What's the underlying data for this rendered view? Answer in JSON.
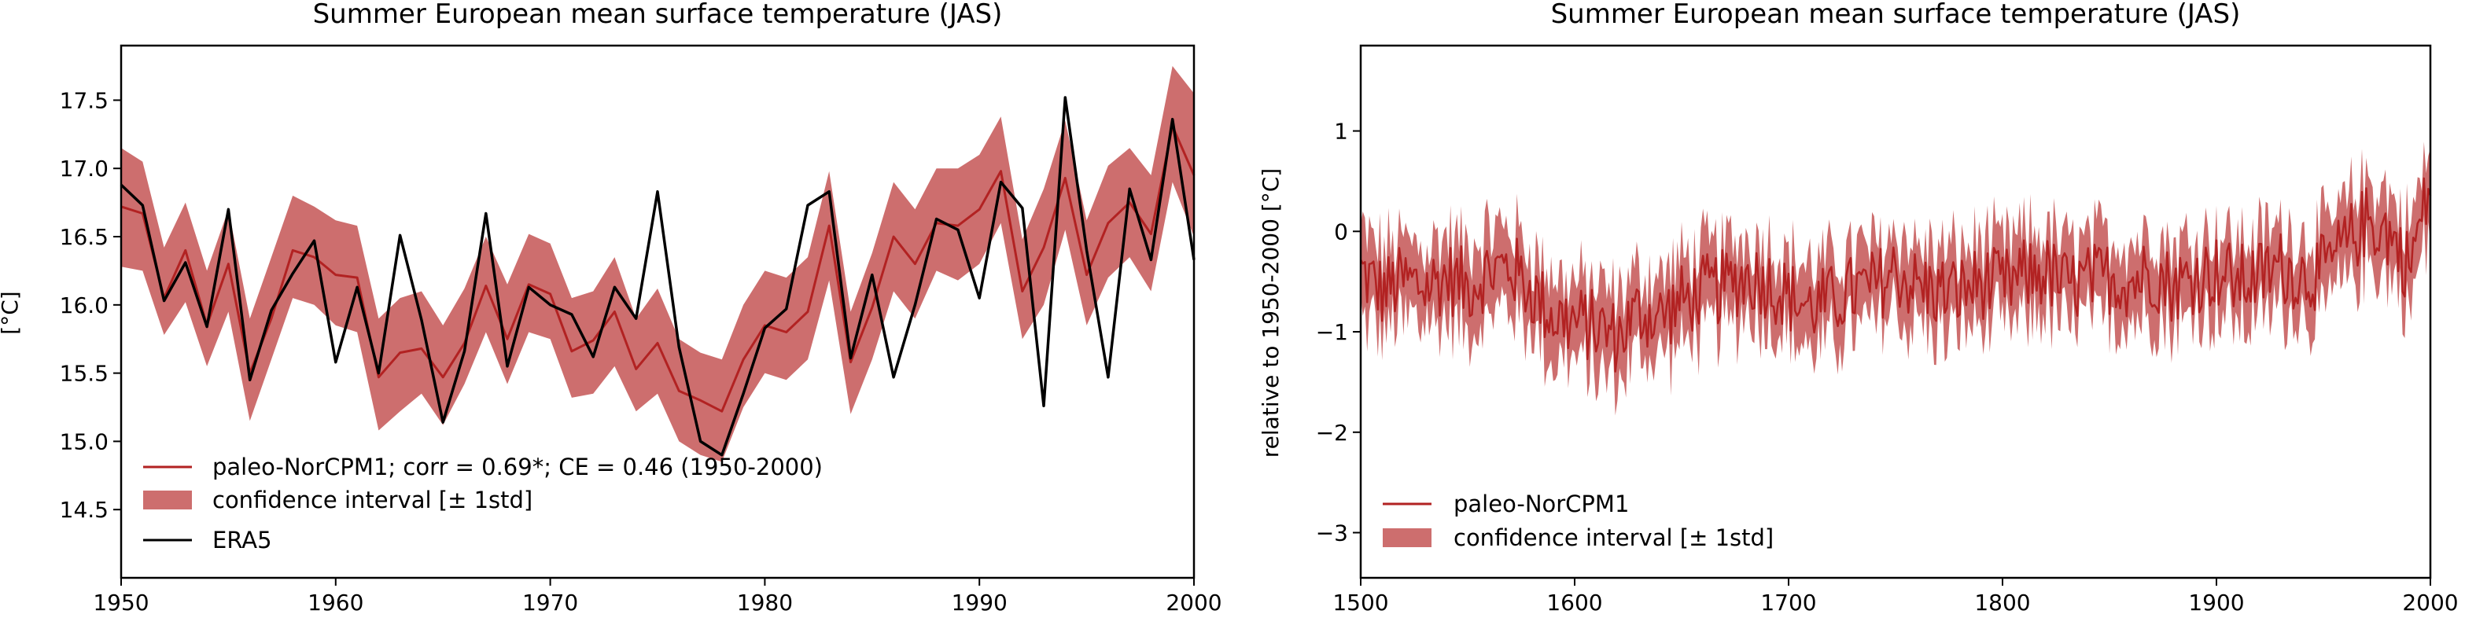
{
  "chart_data": [
    {
      "type": "line",
      "title": "Summer European mean surface temperature (JAS)",
      "xlabel": "",
      "ylabel": "[°C]",
      "xlim": [
        1950,
        2000
      ],
      "ylim": [
        14.0,
        17.9
      ],
      "xticks": [
        "1950",
        "1960",
        "1970",
        "1980",
        "1990",
        "2000"
      ],
      "yticks": [
        "14.5",
        "15.0",
        "15.5",
        "16.0",
        "16.5",
        "17.0",
        "17.5"
      ],
      "legend_position": "lower-left",
      "colors": {
        "model": "#b22222",
        "band": "#cd6e6e",
        "obs": "#000000"
      },
      "x": [
        1950,
        1951,
        1952,
        1953,
        1954,
        1955,
        1956,
        1957,
        1958,
        1959,
        1960,
        1961,
        1962,
        1963,
        1964,
        1965,
        1966,
        1967,
        1968,
        1969,
        1970,
        1971,
        1972,
        1973,
        1974,
        1975,
        1976,
        1977,
        1978,
        1979,
        1980,
        1981,
        1982,
        1983,
        1984,
        1985,
        1986,
        1987,
        1988,
        1989,
        1990,
        1991,
        1992,
        1993,
        1994,
        1995,
        1996,
        1997,
        1998,
        1999,
        2000
      ],
      "series": [
        {
          "name": "paleo-NorCPM1; corr = 0.69*; CE = 0.46 (1950-2000)",
          "role": "mean",
          "values": [
            16.72,
            16.67,
            16.05,
            16.4,
            15.85,
            16.3,
            15.5,
            15.9,
            16.4,
            16.35,
            16.22,
            16.2,
            15.47,
            15.65,
            15.68,
            15.47,
            15.72,
            16.14,
            15.75,
            16.15,
            16.08,
            15.66,
            15.74,
            15.95,
            15.53,
            15.72,
            15.37,
            15.3,
            15.22,
            15.6,
            15.85,
            15.8,
            15.95,
            16.58,
            15.58,
            15.98,
            16.5,
            16.3,
            16.6,
            16.58,
            16.7,
            16.98,
            16.1,
            16.42,
            16.93,
            16.22,
            16.6,
            16.75,
            16.52,
            17.31,
            16.95
          ]
        },
        {
          "name": "confidence interval [± 1std]",
          "role": "band",
          "lower": [
            16.28,
            16.25,
            15.78,
            16.02,
            15.55,
            15.95,
            15.15,
            15.6,
            16.05,
            16.0,
            15.85,
            15.8,
            15.08,
            15.22,
            15.35,
            15.12,
            15.42,
            15.8,
            15.42,
            15.8,
            15.75,
            15.32,
            15.35,
            15.55,
            15.22,
            15.35,
            15.0,
            14.9,
            14.85,
            15.25,
            15.5,
            15.45,
            15.6,
            16.18,
            15.2,
            15.6,
            16.1,
            15.9,
            16.25,
            16.18,
            16.3,
            16.6,
            15.75,
            16.0,
            16.55,
            15.85,
            16.2,
            16.35,
            16.1,
            16.9,
            16.5
          ],
          "upper": [
            17.15,
            17.05,
            16.42,
            16.75,
            16.25,
            16.7,
            15.9,
            16.35,
            16.8,
            16.72,
            16.62,
            16.58,
            15.9,
            16.05,
            16.1,
            15.85,
            16.12,
            16.5,
            16.15,
            16.52,
            16.45,
            16.05,
            16.1,
            16.35,
            15.9,
            16.12,
            15.75,
            15.65,
            15.6,
            16.0,
            16.25,
            16.2,
            16.35,
            16.98,
            15.95,
            16.38,
            16.9,
            16.7,
            17.0,
            17.0,
            17.1,
            17.38,
            16.48,
            16.85,
            17.35,
            16.62,
            17.02,
            17.15,
            16.95,
            17.75,
            17.55
          ]
        },
        {
          "name": "ERA5",
          "role": "obs",
          "values": [
            16.88,
            16.73,
            16.03,
            16.31,
            15.84,
            16.7,
            15.45,
            15.96,
            16.23,
            16.47,
            15.58,
            16.13,
            15.5,
            16.51,
            15.89,
            15.14,
            15.66,
            16.67,
            15.55,
            16.13,
            16.0,
            15.93,
            15.62,
            16.13,
            15.9,
            16.83,
            15.69,
            15.0,
            14.9,
            15.35,
            15.83,
            15.97,
            16.73,
            16.83,
            15.61,
            16.22,
            15.47,
            16.0,
            16.63,
            16.55,
            16.05,
            16.9,
            16.71,
            15.26,
            17.52,
            16.4,
            15.47,
            16.85,
            16.33,
            17.36,
            16.33
          ]
        }
      ]
    },
    {
      "type": "line",
      "title": "Summer European mean surface temperature (JAS)",
      "xlabel": "",
      "ylabel": "relative to 1950-2000 [°C]",
      "xlim": [
        1500,
        2000
      ],
      "ylim": [
        -3.45,
        1.85
      ],
      "xticks": [
        "1500",
        "1600",
        "1700",
        "1800",
        "1900",
        "2000"
      ],
      "yticks": [
        "−3",
        "−2",
        "−1",
        "0",
        "1"
      ],
      "legend_position": "lower-left",
      "colors": {
        "model": "#b22222",
        "band": "#cd6e6e"
      },
      "x_start": 1500,
      "x_step": 10,
      "series": [
        {
          "name": "paleo-NorCPM1",
          "role": "mean",
          "values": [
            -0.4,
            -0.6,
            -0.5,
            -0.55,
            -0.45,
            -0.55,
            -0.4,
            -0.35,
            -0.6,
            -0.85,
            -0.9,
            -0.95,
            -1.05,
            -0.8,
            -0.85,
            -0.7,
            -0.6,
            -0.55,
            -0.45,
            -0.5,
            -0.65,
            -0.75,
            -0.7,
            -0.6,
            -0.55,
            -0.4,
            -0.55,
            -0.6,
            -0.6,
            -0.5,
            -0.55,
            -0.45,
            -0.4,
            -0.55,
            -0.5,
            -0.45,
            -0.5,
            -0.4,
            -0.55,
            -0.45,
            -0.4,
            -0.5,
            -0.45,
            -0.35,
            -0.45,
            -0.4,
            -0.15,
            0.1,
            0.0,
            -0.35,
            0.45
          ]
        },
        {
          "name": "confidence interval [± 1std]",
          "role": "band",
          "half_width": 0.4
        }
      ]
    }
  ]
}
